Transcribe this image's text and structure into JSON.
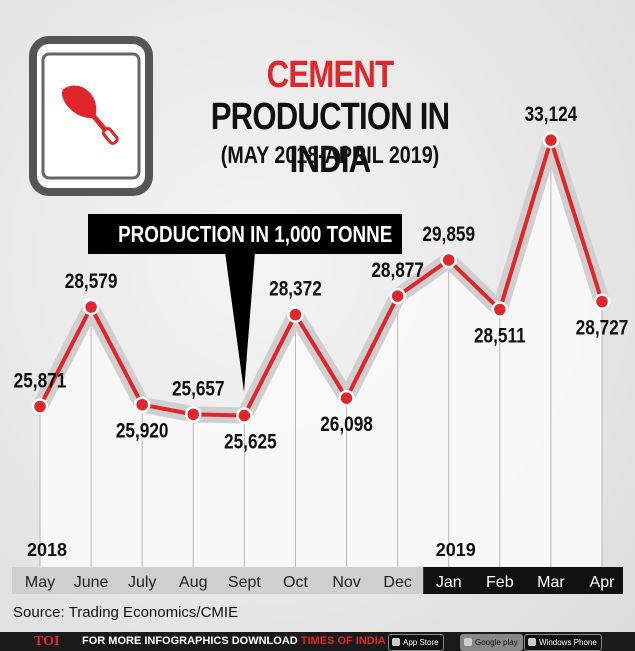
{
  "title": "CEMENT",
  "subtitle": "PRODUCTION IN INDIA",
  "period": "(MAY 2018-APRIL 2019)",
  "unit_note": "PRODUCTION IN 1,000 TONNE",
  "source": "Source: Trading Economics/CMIE",
  "footer": {
    "brand": "TOI",
    "text_prefix": "FOR MORE  INFOGRAPHICS DOWNLOAD ",
    "text_highlight": "TIMES OF INDIA APP",
    "app_store": "App Store",
    "google_play": "Google play",
    "windows_phone": "Windows Phone"
  },
  "colors": {
    "line": "#e0262b",
    "accent": "#e0262b",
    "axis_band": "#cfcfcf",
    "axis_band_dark": "#111111"
  },
  "icon": "trowel-icon",
  "chart_data": {
    "type": "line",
    "categories": [
      "May",
      "June",
      "July",
      "Aug",
      "Sept",
      "Oct",
      "Nov",
      "Dec",
      "Jan",
      "Feb",
      "Mar",
      "Apr"
    ],
    "values": [
      25871,
      28579,
      25920,
      25657,
      25625,
      28372,
      26098,
      28877,
      29859,
      28511,
      33124,
      28727
    ],
    "value_labels": [
      "25,871",
      "28,579",
      "25,920",
      "25,657",
      "25,625",
      "28,372",
      "26,098",
      "28,877",
      "29,859",
      "28,511",
      "33,124",
      "28,727"
    ],
    "year_labels": [
      {
        "text": "2018",
        "category": "May"
      },
      {
        "text": "2019",
        "category": "Jan"
      }
    ],
    "dark_band_from": "Jan",
    "ylim": [
      21500,
      34000
    ]
  }
}
